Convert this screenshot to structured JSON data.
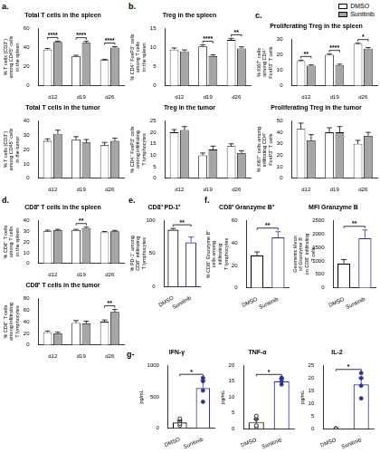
{
  "chart_data": [
    {
      "type": "bar",
      "panel": "a.",
      "title": "Total T cells in the spleen",
      "ylabel": [
        "% T cells (CD3⁺)",
        "among CD45⁺ cells",
        "in the spleen"
      ],
      "categories": [
        "d12",
        "d19",
        "d26"
      ],
      "series": [
        {
          "name": "DMSO",
          "color": "#ffffff",
          "values": [
            38,
            31,
            27
          ],
          "errors": [
            1,
            1,
            0.8
          ]
        },
        {
          "name": "Sunitinib",
          "color": "#a6a6a6",
          "values": [
            46,
            45,
            40
          ],
          "errors": [
            0.8,
            1.5,
            1
          ]
        }
      ],
      "ylim": [
        0,
        60
      ],
      "yticks": [
        0,
        20,
        40,
        60
      ],
      "grid": false,
      "legend": "top-right",
      "annotations": [
        {
          "category": "d12",
          "text": "****"
        },
        {
          "category": "d19",
          "text": "****"
        },
        {
          "category": "d26",
          "text": "****"
        }
      ]
    },
    {
      "type": "bar",
      "title": "Total T cells in the tumor",
      "ylabel": [
        "% T cells (CD3⁺)",
        "among CD45⁺ cells",
        "in the tumor"
      ],
      "categories": [
        "d12",
        "d19",
        "d26"
      ],
      "series": [
        {
          "name": "DMSO",
          "color": "#ffffff",
          "values": [
            26,
            27,
            23
          ],
          "errors": [
            1.5,
            2,
            2
          ]
        },
        {
          "name": "Sunitinib",
          "color": "#a6a6a6",
          "values": [
            31,
            25,
            26
          ],
          "errors": [
            2.5,
            2,
            2
          ]
        }
      ],
      "ylim": [
        0,
        40
      ],
      "yticks": [
        0,
        10,
        20,
        30,
        40
      ],
      "grid": false
    },
    {
      "type": "bar",
      "panel": "b.",
      "title": "Treg in the spleen",
      "ylabel": [
        "% CD4⁺ FoxP3⁺ cells",
        "among T cells",
        "in the spleen"
      ],
      "categories": [
        "d12",
        "d19",
        "d26"
      ],
      "series": [
        {
          "name": "DMSO",
          "color": "#ffffff",
          "values": [
            9.5,
            10.3,
            12
          ],
          "errors": [
            0.4,
            0.4,
            0.4
          ]
        },
        {
          "name": "Sunitinib",
          "color": "#a6a6a6",
          "values": [
            9,
            7.8,
            9.8
          ],
          "errors": [
            0.4,
            0.3,
            0.4
          ]
        }
      ],
      "ylim": [
        0,
        15
      ],
      "yticks": [
        0,
        5,
        10,
        15
      ],
      "grid": false,
      "annotations": [
        {
          "category": "d19",
          "text": "****"
        },
        {
          "category": "d26",
          "text": "**"
        }
      ]
    },
    {
      "type": "bar",
      "title": "Treg in the tumor",
      "ylabel": [
        "% CD4⁺ FoxP3⁺ cells",
        "among infiltrating",
        "T lymphocytes"
      ],
      "categories": [
        "d12",
        "d19",
        "d26"
      ],
      "series": [
        {
          "name": "DMSO",
          "color": "#ffffff",
          "values": [
            20,
            10,
            14
          ],
          "errors": [
            1.2,
            1,
            1
          ]
        },
        {
          "name": "Sunitinib",
          "color": "#a6a6a6",
          "values": [
            21,
            12.5,
            11
          ],
          "errors": [
            1.5,
            1.5,
            1
          ]
        }
      ],
      "ylim": [
        0,
        25
      ],
      "yticks": [
        0,
        5,
        10,
        15,
        20,
        25
      ],
      "grid": false
    },
    {
      "type": "bar",
      "panel": "c.",
      "title": "Proliferating Treg in the spleen",
      "ylabel": [
        "% Ki67⁺ cells",
        "among CD4⁺",
        "FoxP3⁺ T cells"
      ],
      "categories": [
        "d12",
        "d19",
        "d26"
      ],
      "series": [
        {
          "name": "DMSO",
          "color": "#ffffff",
          "values": [
            16,
            20,
            27
          ],
          "errors": [
            0.6,
            0.5,
            0.5
          ]
        },
        {
          "name": "Sunitinib",
          "color": "#a6a6a6",
          "values": [
            13,
            13.5,
            24
          ],
          "errors": [
            0.5,
            0.5,
            0.7
          ]
        }
      ],
      "ylim": [
        0,
        30
      ],
      "yticks": [
        0,
        10,
        20,
        30
      ],
      "grid": false,
      "annotations": [
        {
          "category": "d12",
          "text": "**"
        },
        {
          "category": "d19",
          "text": "****"
        },
        {
          "category": "d26",
          "text": "*"
        }
      ]
    },
    {
      "type": "bar",
      "title": "Proliferating Treg in the tumor",
      "ylabel": [
        "% Ki67⁺ cells among",
        "infiltrating CD4⁺",
        "FoxP3⁺ T cells"
      ],
      "categories": [
        "d12",
        "d19",
        "d26"
      ],
      "series": [
        {
          "name": "DMSO",
          "color": "#ffffff",
          "values": [
            43,
            40,
            30
          ],
          "errors": [
            5,
            4,
            3
          ]
        },
        {
          "name": "Sunitinib",
          "color": "#a6a6a6",
          "values": [
            33,
            40,
            37
          ],
          "errors": [
            5,
            5,
            3
          ]
        }
      ],
      "ylim": [
        0,
        50
      ],
      "yticks": [
        0,
        10,
        20,
        30,
        40,
        50
      ],
      "grid": false
    },
    {
      "type": "bar",
      "panel": "d.",
      "title": "CD8⁺ T cells in the spleen",
      "ylabel": [
        "% CD8⁺ T cells",
        "among T cells",
        "in the spleen"
      ],
      "categories": [
        "d12",
        "d19",
        "d26"
      ],
      "series": [
        {
          "name": "DMSO",
          "color": "#ffffff",
          "values": [
            30,
            31,
            29
          ],
          "errors": [
            1,
            0.8,
            0.8
          ]
        },
        {
          "name": "Sunitinib",
          "color": "#a6a6a6",
          "values": [
            31,
            33,
            30
          ],
          "errors": [
            0.8,
            0.8,
            0.8
          ]
        }
      ],
      "ylim": [
        0,
        40
      ],
      "yticks": [
        0,
        10,
        20,
        30,
        40
      ],
      "grid": false,
      "annotations": [
        {
          "category": "d19",
          "text": "**"
        }
      ]
    },
    {
      "type": "bar",
      "title": "CD8⁺ T cells in the tumor",
      "ylabel": [
        "% CD8⁺ T cells",
        "among infiltrating",
        "T lymphocytes"
      ],
      "categories": [
        "d12",
        "d19",
        "d26"
      ],
      "series": [
        {
          "name": "DMSO",
          "color": "#ffffff",
          "values": [
            22,
            38,
            40
          ],
          "errors": [
            2,
            4,
            3
          ]
        },
        {
          "name": "Sunitinib",
          "color": "#a6a6a6",
          "values": [
            20,
            37,
            57
          ],
          "errors": [
            2,
            4,
            4
          ]
        }
      ],
      "ylim": [
        0,
        80
      ],
      "yticks": [
        0,
        20,
        40,
        60,
        80
      ],
      "grid": false,
      "annotations": [
        {
          "category": "d26",
          "text": "**"
        }
      ]
    },
    {
      "type": "bar",
      "panel": "e.",
      "title": "CD8⁺ PD-1⁺",
      "ylabel": [
        "% PD-1⁺ among",
        "CD8⁺ infiltrating",
        "T lymphocytes"
      ],
      "categories": [
        "DMSO",
        "Sunitinib"
      ],
      "values": [
        86,
        67
      ],
      "errors": [
        2,
        8
      ],
      "colors": [
        "#000000",
        "#2e3192"
      ],
      "ylim": [
        0,
        100
      ],
      "yticks": [
        0,
        50,
        100
      ],
      "grid": false,
      "annotations": [
        {
          "from": "DMSO",
          "to": "Sunitinib",
          "text": "**"
        }
      ]
    },
    {
      "type": "bar",
      "panel": "f.",
      "title": "CD8⁺ Granzyme B⁺",
      "ylabel": [
        "% CD8⁺ Granzyme B⁺",
        "cells among",
        "infiltrating",
        "T lymphocytes"
      ],
      "categories": [
        "DMSO",
        "Sunitinib"
      ],
      "values": [
        29,
        45
      ],
      "errors": [
        3,
        5
      ],
      "colors": [
        "#000000",
        "#2e3192"
      ],
      "ylim": [
        0,
        60
      ],
      "yticks": [
        0,
        20,
        40,
        60
      ],
      "grid": false,
      "annotations": [
        {
          "from": "DMSO",
          "to": "Sunitinib",
          "text": "**"
        }
      ]
    },
    {
      "type": "bar",
      "title": "MFI Granzyme B",
      "ylabel": [
        "Geometric Mean",
        "of Granzyme B",
        "on CD8⁺ infiltrating",
        "T cells"
      ],
      "categories": [
        "DMSO",
        "Sunitinib"
      ],
      "values": [
        900,
        1850
      ],
      "errors": [
        150,
        300
      ],
      "colors": [
        "#000000",
        "#2e3192"
      ],
      "ylim": [
        0,
        2500
      ],
      "yticks": [
        0,
        500,
        1000,
        1500,
        2000,
        2500
      ],
      "grid": false,
      "annotations": [
        {
          "from": "DMSO",
          "to": "Sunitinib",
          "text": "**"
        }
      ]
    },
    {
      "type": "bar",
      "panel": "g-",
      "title": "IFN-γ",
      "ylabel": "pg/mL",
      "categories": [
        "DMSO",
        "Sunitinib"
      ],
      "values": [
        90,
        640
      ],
      "errors": [
        30,
        120
      ],
      "points": [
        [
          40,
          70,
          110,
          150
        ],
        [
          420,
          600,
          750,
          800
        ]
      ],
      "marker": "circle",
      "colors": [
        "#000000",
        "#2e3192"
      ],
      "ylim": [
        0,
        1000
      ],
      "yticks": [
        0,
        500,
        1000
      ],
      "grid": false,
      "annotations": [
        {
          "from": "DMSO",
          "to": "Sunitinib",
          "text": "*"
        }
      ]
    },
    {
      "type": "bar",
      "title": "TNF-α",
      "ylabel": "pg/mL",
      "categories": [
        "DMSO",
        "Sunitinib"
      ],
      "values": [
        2,
        15
      ],
      "errors": [
        1,
        0.7
      ],
      "points": [
        [
          0.5,
          1,
          3,
          4
        ],
        [
          14,
          15,
          16,
          16
        ]
      ],
      "marker": "circle",
      "colors": [
        "#000000",
        "#2e3192"
      ],
      "ylim": [
        0,
        20
      ],
      "yticks": [
        0,
        5,
        10,
        15,
        20
      ],
      "grid": false,
      "annotations": [
        {
          "from": "DMSO",
          "to": "Sunitinib",
          "text": "*"
        }
      ]
    },
    {
      "type": "bar",
      "title": "IL-2",
      "ylabel": "pg/mL",
      "categories": [
        "DMSO",
        "Sunitinib"
      ],
      "values": [
        0,
        17.5
      ],
      "errors": [
        0,
        2.5
      ],
      "points": [
        [
          0,
          0,
          0,
          0
        ],
        [
          12,
          17,
          20,
          22
        ]
      ],
      "marker": "circle",
      "colors": [
        "#000000",
        "#2e3192"
      ],
      "ylim": [
        0,
        25
      ],
      "yticks": [
        0,
        5,
        10,
        15,
        20,
        25
      ],
      "grid": false,
      "annotations": [
        {
          "from": "DMSO",
          "to": "Sunitinib",
          "text": "*"
        }
      ]
    }
  ]
}
